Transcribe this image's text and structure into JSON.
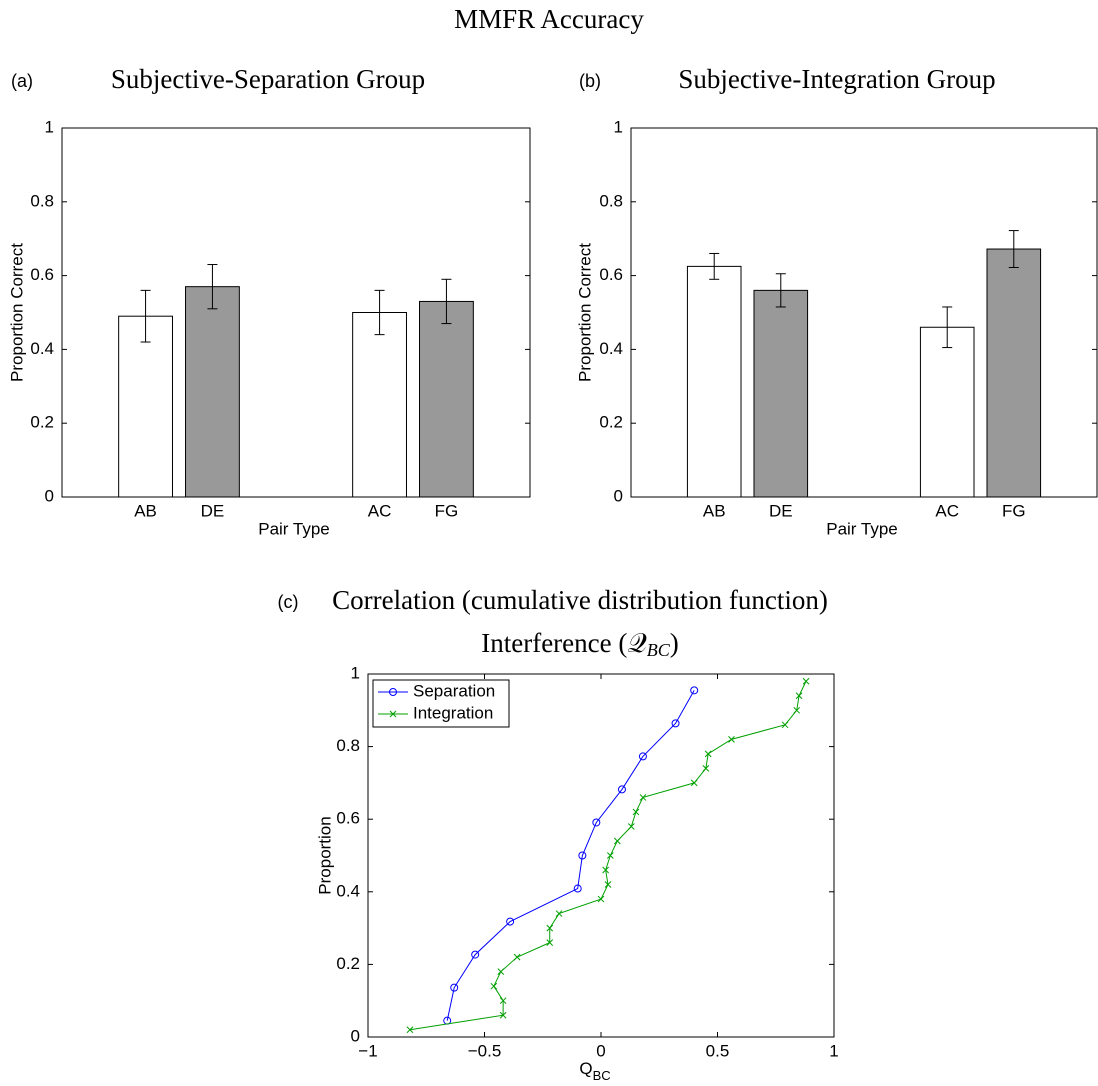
{
  "title": "MMFR Accuracy",
  "chart_data": [
    {
      "type": "bar",
      "panel": "(a)",
      "title": "Subjective-Separation Group",
      "categories": [
        "AB",
        "DE",
        "AC",
        "FG"
      ],
      "values": [
        0.49,
        0.57,
        0.5,
        0.53
      ],
      "errors": [
        0.07,
        0.06,
        0.06,
        0.06
      ],
      "colors": [
        "#ffffff",
        "#999999",
        "#ffffff",
        "#999999"
      ],
      "xlabel": "Pair Type",
      "ylabel": "Proportion Correct",
      "ylim": [
        0,
        1
      ],
      "yticks": [
        0,
        0.2,
        0.4,
        0.6,
        0.8,
        1
      ]
    },
    {
      "type": "bar",
      "panel": "(b)",
      "title": "Subjective-Integration Group",
      "categories": [
        "AB",
        "DE",
        "AC",
        "FG"
      ],
      "values": [
        0.625,
        0.56,
        0.46,
        0.672
      ],
      "errors": [
        0.035,
        0.045,
        0.055,
        0.05
      ],
      "colors": [
        "#ffffff",
        "#999999",
        "#ffffff",
        "#999999"
      ],
      "xlabel": "Pair Type",
      "ylabel": "Proportion Correct",
      "ylim": [
        0,
        1
      ],
      "yticks": [
        0,
        0.2,
        0.4,
        0.6,
        0.8,
        1
      ]
    },
    {
      "type": "line",
      "panel": "(c)",
      "title": "Correlation (cumulative distribution function)",
      "subtitle": "Interference (𝒬",
      "subtitle_sub": "BC",
      "subtitle_end": ")",
      "xlabel": "Q",
      "xlabel_sub": "BC",
      "ylabel": "Proportion",
      "xlim": [
        -1,
        1
      ],
      "xticks": [
        {
          "value": -1,
          "label": "−1"
        },
        {
          "value": -0.5,
          "label": "−0.5"
        },
        0,
        0.5,
        1
      ],
      "ylim": [
        0,
        1
      ],
      "yticks": [
        0,
        0.2,
        0.4,
        0.6,
        0.8,
        1
      ],
      "legend": "upper left",
      "series": [
        {
          "name": "Separation",
          "color": "#0000ff",
          "marker": "o",
          "x": [
            -0.66,
            -0.63,
            -0.54,
            -0.39,
            -0.1,
            -0.08,
            -0.02,
            0.09,
            0.18,
            0.32,
            0.4
          ],
          "values": [
            0.045,
            0.136,
            0.227,
            0.318,
            0.409,
            0.5,
            0.591,
            0.682,
            0.773,
            0.864,
            0.955
          ]
        },
        {
          "name": "Integration",
          "color": "#00a000",
          "marker": "x",
          "x": [
            -0.82,
            -0.42,
            -0.42,
            -0.46,
            -0.43,
            -0.36,
            -0.22,
            -0.22,
            -0.18,
            0.0,
            0.03,
            0.02,
            0.04,
            0.07,
            0.13,
            0.15,
            0.18,
            0.4,
            0.45,
            0.46,
            0.56,
            0.79,
            0.84,
            0.85,
            0.88
          ],
          "values": [
            0.02,
            0.06,
            0.1,
            0.14,
            0.18,
            0.22,
            0.26,
            0.3,
            0.34,
            0.38,
            0.42,
            0.46,
            0.5,
            0.54,
            0.58,
            0.62,
            0.66,
            0.7,
            0.74,
            0.78,
            0.82,
            0.86,
            0.9,
            0.94,
            0.98
          ]
        }
      ]
    }
  ]
}
